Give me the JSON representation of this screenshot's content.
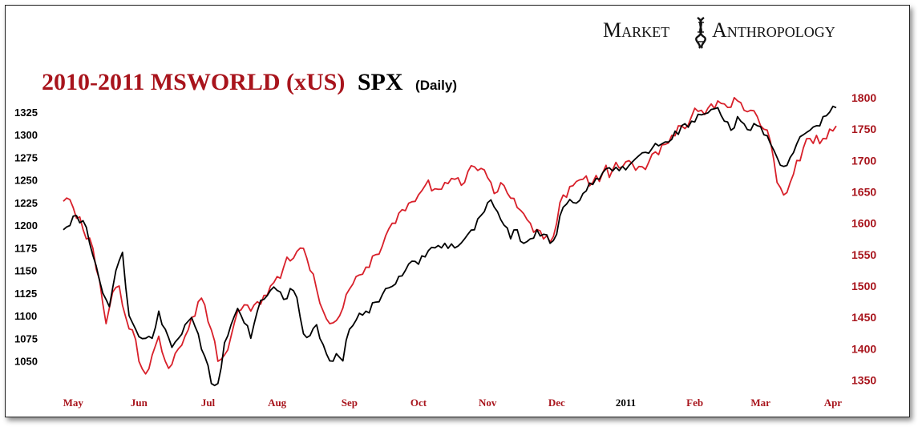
{
  "brand": {
    "left": "Market",
    "right": "Anthropology",
    "logo_icon": "dna-helix-icon"
  },
  "title": {
    "main": "2010-2011 MSWORLD (xUS)",
    "series2": "SPX",
    "period": "(Daily)"
  },
  "colors": {
    "msworld": "#d8202a",
    "spx": "#000000",
    "left_axis_text": "#000000",
    "right_axis_text": "#a8141c",
    "month_text": "#a8141c",
    "title_red": "#a8141c"
  },
  "chart_data": {
    "type": "line",
    "title": "2010-2011 MSWORLD (xUS) SPX (Daily)",
    "x_months": [
      {
        "label": "May",
        "idx": 3
      },
      {
        "label": "Jun",
        "idx": 23
      },
      {
        "label": "Jul",
        "idx": 44
      },
      {
        "label": "Aug",
        "idx": 65
      },
      {
        "label": "Sep",
        "idx": 87
      },
      {
        "label": "Oct",
        "idx": 108
      },
      {
        "label": "Nov",
        "idx": 129
      },
      {
        "label": "Dec",
        "idx": 150
      },
      {
        "label": "2011",
        "idx": 171
      },
      {
        "label": "Feb",
        "idx": 192
      },
      {
        "label": "Mar",
        "idx": 212
      },
      {
        "label": "Apr",
        "idx": 234
      }
    ],
    "x_count": 236,
    "left_axis": {
      "series": "SPX",
      "ticks": [
        1050,
        1075,
        1100,
        1125,
        1150,
        1175,
        1200,
        1225,
        1250,
        1275,
        1300,
        1325
      ],
      "range": [
        1010,
        1343
      ]
    },
    "right_axis": {
      "series": "MSWORLD (xUS)",
      "ticks": [
        1350,
        1400,
        1450,
        1500,
        1550,
        1600,
        1650,
        1700,
        1750,
        1800
      ],
      "range": [
        1336,
        1815
      ]
    },
    "grid": false,
    "legend": "none",
    "series": [
      {
        "name": "SPX",
        "axis": "left",
        "anchors": [
          [
            0,
            1195
          ],
          [
            3,
            1210
          ],
          [
            6,
            1205
          ],
          [
            8,
            1180
          ],
          [
            10,
            1155
          ],
          [
            12,
            1125
          ],
          [
            14,
            1110
          ],
          [
            16,
            1150
          ],
          [
            18,
            1170
          ],
          [
            20,
            1100
          ],
          [
            22,
            1085
          ],
          [
            25,
            1075
          ],
          [
            27,
            1075
          ],
          [
            29,
            1105
          ],
          [
            31,
            1085
          ],
          [
            33,
            1065
          ],
          [
            35,
            1075
          ],
          [
            37,
            1090
          ],
          [
            39,
            1098
          ],
          [
            41,
            1080
          ],
          [
            43,
            1055
          ],
          [
            45,
            1025
          ],
          [
            47,
            1025
          ],
          [
            49,
            1070
          ],
          [
            51,
            1090
          ],
          [
            53,
            1108
          ],
          [
            55,
            1092
          ],
          [
            57,
            1075
          ],
          [
            59,
            1105
          ],
          [
            61,
            1118
          ],
          [
            63,
            1128
          ],
          [
            65,
            1128
          ],
          [
            67,
            1118
          ],
          [
            69,
            1130
          ],
          [
            71,
            1120
          ],
          [
            73,
            1080
          ],
          [
            75,
            1078
          ],
          [
            77,
            1090
          ],
          [
            79,
            1068
          ],
          [
            81,
            1050
          ],
          [
            83,
            1058
          ],
          [
            85,
            1050
          ],
          [
            87,
            1085
          ],
          [
            89,
            1095
          ],
          [
            92,
            1105
          ],
          [
            95,
            1115
          ],
          [
            98,
            1130
          ],
          [
            101,
            1135
          ],
          [
            104,
            1150
          ],
          [
            107,
            1160
          ],
          [
            110,
            1165
          ],
          [
            113,
            1175
          ],
          [
            116,
            1180
          ],
          [
            119,
            1175
          ],
          [
            122,
            1185
          ],
          [
            125,
            1195
          ],
          [
            128,
            1215
          ],
          [
            130,
            1228
          ],
          [
            132,
            1215
          ],
          [
            134,
            1200
          ],
          [
            136,
            1185
          ],
          [
            138,
            1195
          ],
          [
            140,
            1180
          ],
          [
            142,
            1185
          ],
          [
            144,
            1195
          ],
          [
            146,
            1190
          ],
          [
            148,
            1180
          ],
          [
            150,
            1190
          ],
          [
            152,
            1220
          ],
          [
            155,
            1225
          ],
          [
            158,
            1235
          ],
          [
            161,
            1245
          ],
          [
            164,
            1258
          ],
          [
            167,
            1260
          ],
          [
            170,
            1265
          ],
          [
            173,
            1270
          ],
          [
            176,
            1280
          ],
          [
            179,
            1285
          ],
          [
            182,
            1290
          ],
          [
            185,
            1295
          ],
          [
            188,
            1310
          ],
          [
            191,
            1315
          ],
          [
            194,
            1322
          ],
          [
            197,
            1328
          ],
          [
            199,
            1330
          ],
          [
            201,
            1315
          ],
          [
            203,
            1305
          ],
          [
            205,
            1320
          ],
          [
            207,
            1312
          ],
          [
            209,
            1305
          ],
          [
            211,
            1310
          ],
          [
            213,
            1300
          ],
          [
            215,
            1290
          ],
          [
            217,
            1275
          ],
          [
            219,
            1265
          ],
          [
            221,
            1275
          ],
          [
            223,
            1290
          ],
          [
            225,
            1300
          ],
          [
            227,
            1305
          ],
          [
            229,
            1310
          ],
          [
            231,
            1320
          ],
          [
            233,
            1325
          ],
          [
            235,
            1330
          ]
        ]
      },
      {
        "name": "MSWORLD (xUS)",
        "axis": "right",
        "anchors": [
          [
            0,
            1635
          ],
          [
            3,
            1625
          ],
          [
            5,
            1610
          ],
          [
            7,
            1575
          ],
          [
            9,
            1560
          ],
          [
            11,
            1510
          ],
          [
            13,
            1440
          ],
          [
            15,
            1490
          ],
          [
            17,
            1500
          ],
          [
            19,
            1450
          ],
          [
            21,
            1430
          ],
          [
            23,
            1380
          ],
          [
            25,
            1360
          ],
          [
            27,
            1390
          ],
          [
            29,
            1420
          ],
          [
            31,
            1380
          ],
          [
            33,
            1375
          ],
          [
            35,
            1400
          ],
          [
            37,
            1420
          ],
          [
            39,
            1450
          ],
          [
            41,
            1475
          ],
          [
            43,
            1470
          ],
          [
            45,
            1430
          ],
          [
            47,
            1380
          ],
          [
            49,
            1390
          ],
          [
            51,
            1420
          ],
          [
            53,
            1460
          ],
          [
            55,
            1470
          ],
          [
            57,
            1460
          ],
          [
            59,
            1475
          ],
          [
            61,
            1485
          ],
          [
            63,
            1500
          ],
          [
            65,
            1515
          ],
          [
            67,
            1530
          ],
          [
            69,
            1540
          ],
          [
            71,
            1555
          ],
          [
            73,
            1560
          ],
          [
            75,
            1525
          ],
          [
            77,
            1495
          ],
          [
            79,
            1460
          ],
          [
            81,
            1440
          ],
          [
            83,
            1445
          ],
          [
            85,
            1465
          ],
          [
            87,
            1495
          ],
          [
            89,
            1515
          ],
          [
            92,
            1530
          ],
          [
            95,
            1550
          ],
          [
            98,
            1580
          ],
          [
            101,
            1600
          ],
          [
            104,
            1620
          ],
          [
            107,
            1635
          ],
          [
            110,
            1660
          ],
          [
            113,
            1655
          ],
          [
            116,
            1665
          ],
          [
            119,
            1670
          ],
          [
            122,
            1665
          ],
          [
            125,
            1690
          ],
          [
            128,
            1685
          ],
          [
            130,
            1665
          ],
          [
            132,
            1650
          ],
          [
            134,
            1660
          ],
          [
            136,
            1640
          ],
          [
            138,
            1625
          ],
          [
            140,
            1615
          ],
          [
            142,
            1600
          ],
          [
            144,
            1590
          ],
          [
            146,
            1575
          ],
          [
            148,
            1570
          ],
          [
            150,
            1600
          ],
          [
            152,
            1645
          ],
          [
            155,
            1660
          ],
          [
            158,
            1670
          ],
          [
            161,
            1665
          ],
          [
            164,
            1680
          ],
          [
            167,
            1685
          ],
          [
            170,
            1690
          ],
          [
            173,
            1695
          ],
          [
            176,
            1690
          ],
          [
            179,
            1710
          ],
          [
            182,
            1725
          ],
          [
            185,
            1740
          ],
          [
            188,
            1755
          ],
          [
            191,
            1770
          ],
          [
            194,
            1780
          ],
          [
            197,
            1790
          ],
          [
            199,
            1795
          ],
          [
            201,
            1790
          ],
          [
            203,
            1785
          ],
          [
            205,
            1795
          ],
          [
            207,
            1780
          ],
          [
            209,
            1780
          ],
          [
            211,
            1770
          ],
          [
            213,
            1750
          ],
          [
            215,
            1730
          ],
          [
            217,
            1665
          ],
          [
            219,
            1645
          ],
          [
            221,
            1665
          ],
          [
            223,
            1700
          ],
          [
            225,
            1720
          ],
          [
            227,
            1735
          ],
          [
            229,
            1740
          ],
          [
            231,
            1735
          ],
          [
            233,
            1750
          ],
          [
            235,
            1755
          ]
        ]
      }
    ]
  }
}
